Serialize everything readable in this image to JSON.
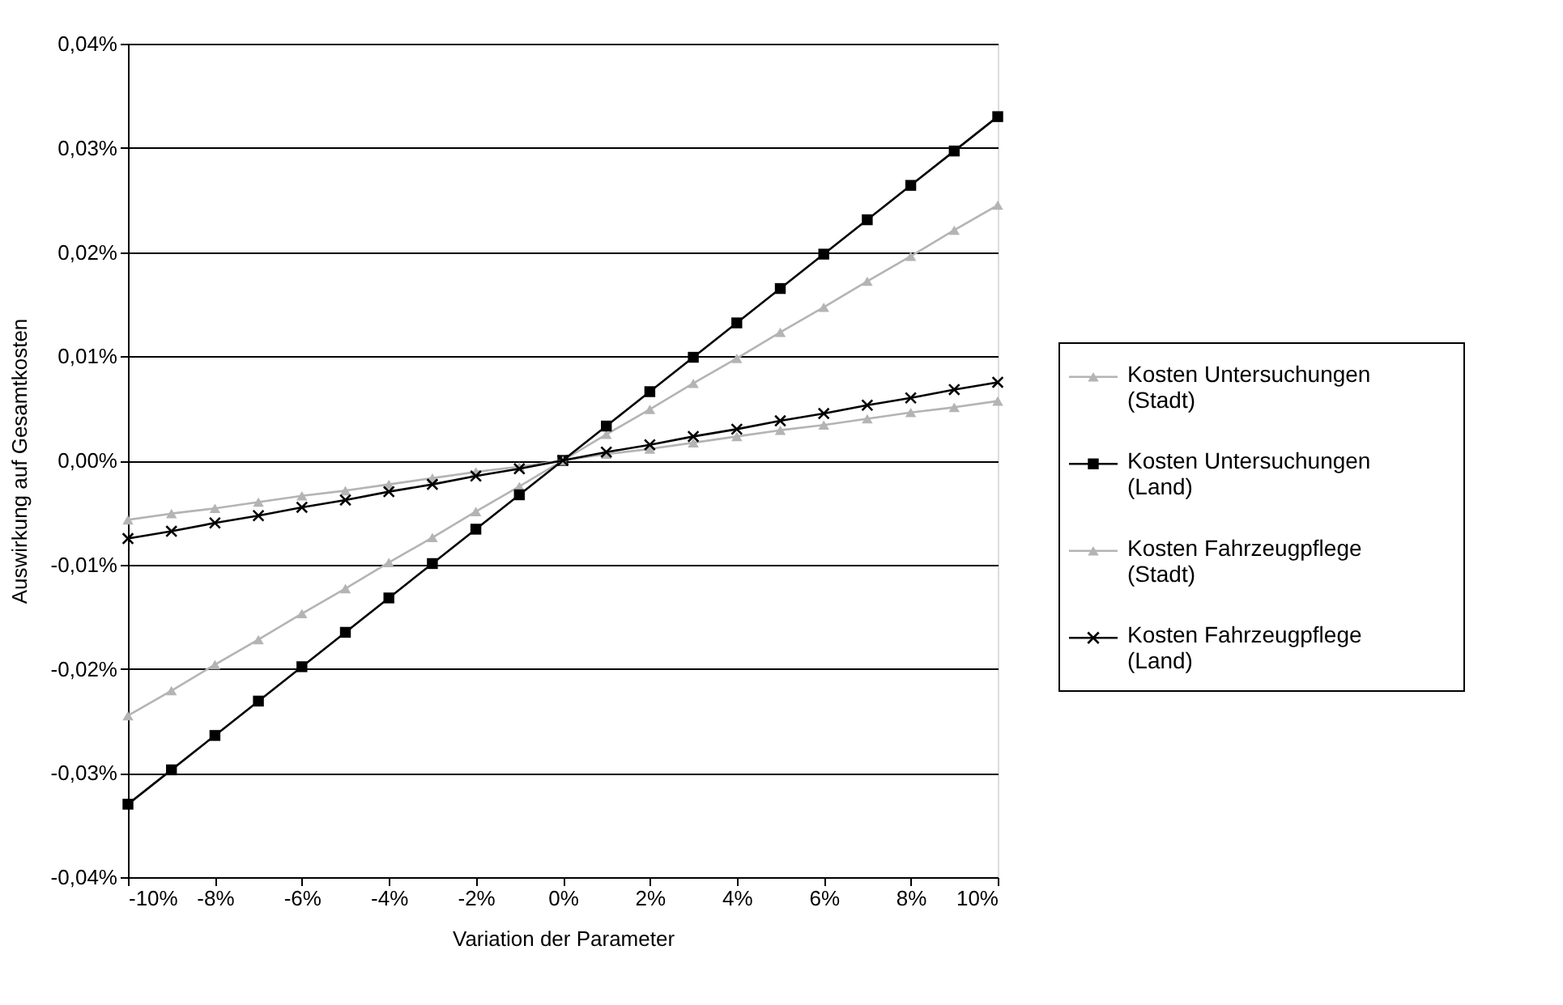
{
  "chart_data": {
    "type": "line",
    "xlabel": "Variation der  Parameter",
    "ylabel": "Auswirkung auf Gesamtkosten",
    "x": [
      -10,
      -9,
      -8,
      -7,
      -6,
      -5,
      -4,
      -3,
      -2,
      -1,
      0,
      1,
      2,
      3,
      4,
      5,
      6,
      7,
      8,
      9,
      10
    ],
    "series": [
      {
        "name": "Kosten Untersuchungen\n(Stadt)",
        "color": "#b4b4b4",
        "marker": "triangle",
        "values": [
          -0.0245,
          -0.0221,
          -0.0196,
          -0.0172,
          -0.0147,
          -0.0123,
          -0.0098,
          -0.0074,
          -0.0049,
          -0.0025,
          0,
          0.0025,
          0.0049,
          0.0074,
          0.0098,
          0.0123,
          0.0147,
          0.0172,
          0.0196,
          0.0221,
          0.0245
        ]
      },
      {
        "name": "Kosten Untersuchungen\n(Land)",
        "color": "#000000",
        "marker": "square",
        "values": [
          -0.033,
          -0.0297,
          -0.0264,
          -0.0231,
          -0.0198,
          -0.0165,
          -0.0132,
          -0.0099,
          -0.0066,
          -0.0033,
          0,
          0.0033,
          0.0066,
          0.0099,
          0.0132,
          0.0165,
          0.0198,
          0.0231,
          0.0264,
          0.0297,
          0.033
        ]
      },
      {
        "name": "Kosten Fahrzeugpflege\n(Stadt)",
        "color": "#b4b4b4",
        "marker": "triangle",
        "values": [
          -0.0057,
          -0.0051,
          -0.0046,
          -0.004,
          -0.0034,
          -0.0029,
          -0.0023,
          -0.0017,
          -0.0011,
          -0.0006,
          0,
          0.0006,
          0.0011,
          0.0017,
          0.0023,
          0.0029,
          0.0034,
          0.004,
          0.0046,
          0.0051,
          0.0057
        ]
      },
      {
        "name": "Kosten Fahrzeugpflege\n(Land)",
        "color": "#000000",
        "marker": "cross",
        "values": [
          -0.0075,
          -0.0068,
          -0.006,
          -0.0053,
          -0.0045,
          -0.0038,
          -0.003,
          -0.0023,
          -0.0015,
          -0.0008,
          0,
          0.0008,
          0.0015,
          0.0023,
          0.003,
          0.0038,
          0.0045,
          0.0053,
          0.006,
          0.0068,
          0.0075
        ]
      }
    ],
    "xlim": [
      -10,
      10
    ],
    "xticks": [
      {
        "value": -10,
        "label": "-10%"
      },
      {
        "value": -8,
        "label": "-8%"
      },
      {
        "value": -6,
        "label": "-6%"
      },
      {
        "value": -4,
        "label": "-4%"
      },
      {
        "value": -2,
        "label": "-2%"
      },
      {
        "value": 0,
        "label": "0%"
      },
      {
        "value": 2,
        "label": "2%"
      },
      {
        "value": 4,
        "label": "4%"
      },
      {
        "value": 6,
        "label": "6%"
      },
      {
        "value": 8,
        "label": "8%"
      },
      {
        "value": 10,
        "label": "10%"
      }
    ],
    "ylim": [
      -0.04,
      0.04
    ],
    "yticks": [
      {
        "value": -0.04,
        "label": "-0,04%"
      },
      {
        "value": -0.03,
        "label": "-0,03%"
      },
      {
        "value": -0.02,
        "label": "-0,02%"
      },
      {
        "value": -0.01,
        "label": "-0,01%"
      },
      {
        "value": 0,
        "label": "0,00%"
      },
      {
        "value": 0.01,
        "label": "0,01%"
      },
      {
        "value": 0.02,
        "label": "0,02%"
      },
      {
        "value": 0.03,
        "label": "0,03%"
      },
      {
        "value": 0.04,
        "label": "0,04%"
      }
    ],
    "grid": "y",
    "legend": "right",
    "line_style": "solid"
  }
}
